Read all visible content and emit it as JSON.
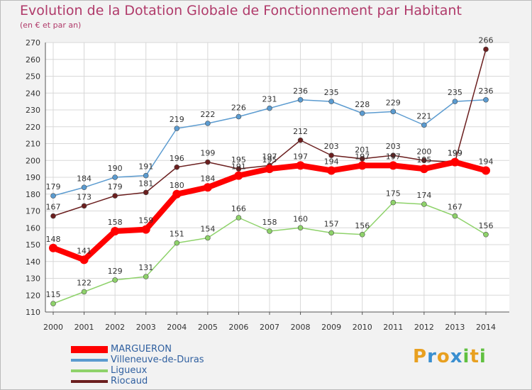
{
  "title": "Evolution de la Dotation Globale de Fonctionnement par Habitant",
  "subtitle": "(en € et par an)",
  "logo": {
    "letters": [
      "P",
      "r",
      "o",
      "x",
      "i",
      "t",
      "i"
    ],
    "colors": [
      "#e8a020",
      "#3a8fd0",
      "#e8a020",
      "#3a8fd0",
      "#60c040",
      "#e8a020",
      "#60c040"
    ]
  },
  "chart_data": {
    "type": "line",
    "x": [
      "2000",
      "2001",
      "2002",
      "2003",
      "2004",
      "2005",
      "2006",
      "2007",
      "2008",
      "2009",
      "2010",
      "2011",
      "2012",
      "2013",
      "2014"
    ],
    "ylim": [
      110,
      270
    ],
    "yticks": [
      110,
      120,
      130,
      140,
      150,
      160,
      170,
      180,
      190,
      200,
      210,
      220,
      230,
      240,
      250,
      260,
      270
    ],
    "grid": true,
    "legend_position": "bottom-left",
    "series": [
      {
        "name": "Villeneuve-de-Duras",
        "color": "#5b9bd0",
        "values": [
          179,
          184,
          190,
          191,
          219,
          222,
          226,
          231,
          236,
          235,
          228,
          229,
          221,
          235,
          236
        ]
      },
      {
        "name": "Riocaud",
        "color": "#6b1f1f",
        "values": [
          167,
          173,
          179,
          181,
          196,
          199,
          195,
          197,
          212,
          203,
          201,
          203,
          200,
          199,
          266
        ]
      },
      {
        "name": "Ligueux",
        "color": "#8ed26a",
        "values": [
          115,
          122,
          129,
          131,
          151,
          154,
          166,
          158,
          160,
          157,
          156,
          175,
          174,
          167,
          156
        ]
      },
      {
        "name": "MARGUERON",
        "color": "#ff0000",
        "values": [
          148,
          141,
          158,
          159,
          180,
          184,
          191,
          195,
          197,
          194,
          197,
          197,
          195,
          199,
          194
        ]
      }
    ]
  },
  "legend": [
    {
      "name": "MARGUERON",
      "color": "#ff0000"
    },
    {
      "name": "Villeneuve-de-Duras",
      "color": "#5b9bd0"
    },
    {
      "name": "Ligueux",
      "color": "#8ed26a"
    },
    {
      "name": "Riocaud",
      "color": "#6b1f1f"
    }
  ]
}
